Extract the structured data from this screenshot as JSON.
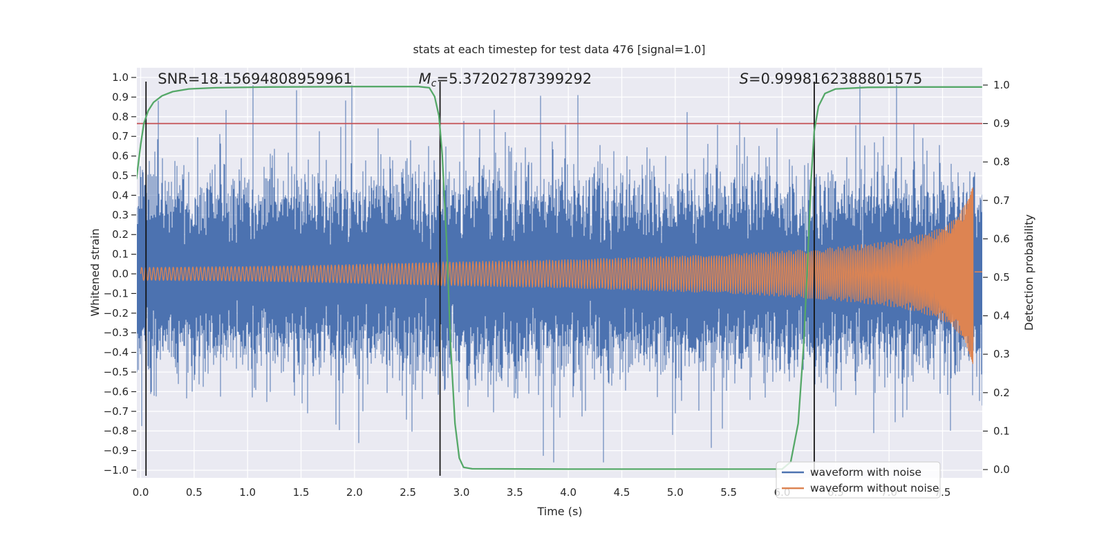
{
  "chart_data": {
    "type": "line",
    "title": "stats at each timestep for test data 476 [signal=1.0]",
    "xlabel": "Time (s)",
    "ylabel_left": "Whitened strain",
    "ylabel_right": "Detection probability",
    "xlim": [
      -0.04,
      7.87
    ],
    "ylim_left": [
      -1.05,
      1.05
    ],
    "ylim_right": [
      -0.02,
      1.045
    ],
    "xticks": [
      0.0,
      0.5,
      1.0,
      1.5,
      2.0,
      2.5,
      3.0,
      3.5,
      4.0,
      4.5,
      5.0,
      5.5,
      6.0,
      6.5,
      7.0,
      7.5
    ],
    "yticks_left": [
      -1.0,
      -0.9,
      -0.8,
      -0.7,
      -0.6,
      -0.5,
      -0.4,
      -0.3,
      -0.2,
      -0.1,
      0.0,
      0.1,
      0.2,
      0.3,
      0.4,
      0.5,
      0.6,
      0.7,
      0.8,
      0.9,
      1.0
    ],
    "yticks_right": [
      0.0,
      0.1,
      0.2,
      0.3,
      0.4,
      0.5,
      0.6,
      0.7,
      0.8,
      0.9,
      1.0
    ],
    "colors": {
      "background_plot": "#eaeaf2",
      "grid": "#ffffff",
      "noise_blue": "#4c72b0",
      "chirp_orange": "#dd8452",
      "probability_green": "#55a868",
      "threshold_red": "#c44e52",
      "marker_black": "#141414",
      "text": "#262626",
      "legend_edge": "#cccccc"
    },
    "annotations": [
      {
        "kind": "plain",
        "text": "SNR=18.15694808959961",
        "x": 0.16
      },
      {
        "kind": "math",
        "italic": "M",
        "sub": "c",
        "rest": "=5.37202787399292",
        "x": 2.6
      },
      {
        "kind": "math",
        "italic": "S",
        "sub": "",
        "rest": "=0.9998162388801575",
        "x": 5.6
      }
    ],
    "threshold_line": {
      "axis": "right",
      "value": 0.9
    },
    "event_vlines": {
      "times": [
        0.05,
        2.8,
        6.3
      ]
    },
    "series": [
      {
        "name": "waveform with noise",
        "kind": "noise",
        "axis": "left",
        "noise_params": {
          "seed": 1337,
          "sigma": 0.21,
          "sigma_tail": 0.42,
          "tail_prob": 0.01,
          "samples_per_column": 8,
          "min_abs": 0.1,
          "max_abs": 0.96
        }
      },
      {
        "name": "waveform without noise",
        "kind": "chirp",
        "axis": "left",
        "f0": 58,
        "t_merger": 7.79,
        "freq_exponent": -0.375,
        "post_merger_level": 0.01,
        "envelope": [
          [
            0,
            0.033
          ],
          [
            0.5,
            0.035
          ],
          [
            1,
            0.038
          ],
          [
            1.5,
            0.042
          ],
          [
            2,
            0.048
          ],
          [
            2.6,
            0.058
          ],
          [
            3,
            0.062
          ],
          [
            4,
            0.072
          ],
          [
            5,
            0.09
          ],
          [
            5.5,
            0.1
          ],
          [
            6,
            0.115
          ],
          [
            6.5,
            0.135
          ],
          [
            7,
            0.165
          ],
          [
            7.2,
            0.185
          ],
          [
            7.4,
            0.215
          ],
          [
            7.55,
            0.25
          ],
          [
            7.65,
            0.3
          ],
          [
            7.72,
            0.36
          ],
          [
            7.76,
            0.42
          ],
          [
            7.785,
            0.46
          ]
        ]
      },
      {
        "name": "detection probability",
        "kind": "line",
        "axis": "right",
        "points": [
          [
            -0.04,
            0.755
          ],
          [
            0.0,
            0.845
          ],
          [
            0.03,
            0.9
          ],
          [
            0.07,
            0.933
          ],
          [
            0.12,
            0.955
          ],
          [
            0.2,
            0.972
          ],
          [
            0.3,
            0.983
          ],
          [
            0.45,
            0.99
          ],
          [
            0.7,
            0.993
          ],
          [
            1.2,
            0.995
          ],
          [
            2.0,
            0.996
          ],
          [
            2.6,
            0.996
          ],
          [
            2.7,
            0.993
          ],
          [
            2.75,
            0.97
          ],
          [
            2.79,
            0.92
          ],
          [
            2.82,
            0.82
          ],
          [
            2.86,
            0.6
          ],
          [
            2.9,
            0.32
          ],
          [
            2.94,
            0.12
          ],
          [
            2.98,
            0.03
          ],
          [
            3.02,
            0.006
          ],
          [
            3.1,
            0.002
          ],
          [
            4.0,
            0.001
          ],
          [
            6.0,
            0.001
          ],
          [
            6.08,
            0.02
          ],
          [
            6.15,
            0.12
          ],
          [
            6.2,
            0.32
          ],
          [
            6.24,
            0.55
          ],
          [
            6.27,
            0.75
          ],
          [
            6.3,
            0.88
          ],
          [
            6.34,
            0.945
          ],
          [
            6.4,
            0.978
          ],
          [
            6.5,
            0.99
          ],
          [
            6.8,
            0.994
          ],
          [
            7.3,
            0.995
          ],
          [
            7.87,
            0.995
          ]
        ]
      }
    ],
    "legend": {
      "entries": [
        {
          "label": "waveform with noise",
          "color": "#4c72b0"
        },
        {
          "label": "waveform without noise",
          "color": "#dd8452"
        }
      ]
    }
  }
}
